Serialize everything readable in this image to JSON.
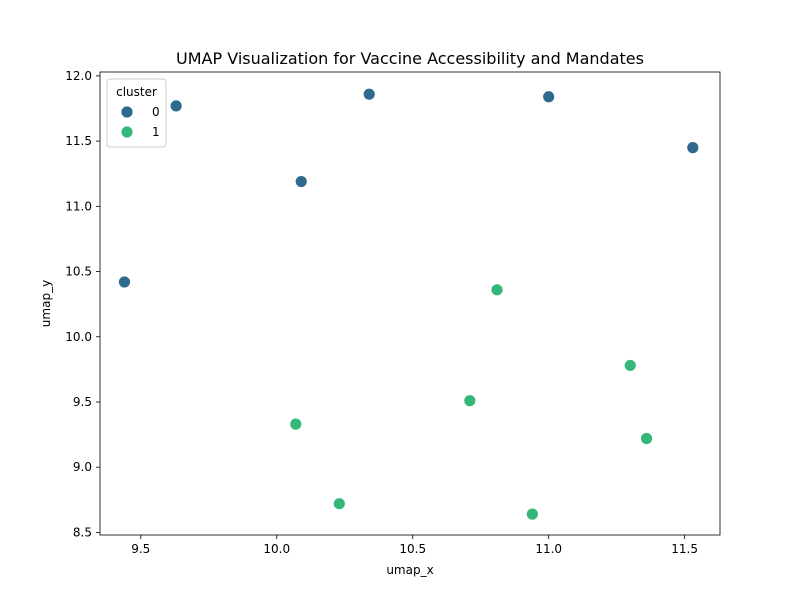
{
  "chart_data": {
    "type": "scatter",
    "title": "UMAP Visualization for Vaccine Accessibility and Mandates",
    "xlabel": "umap_x",
    "ylabel": "umap_y",
    "xlim": [
      9.35,
      11.63
    ],
    "ylim": [
      8.48,
      12.03
    ],
    "x_ticks": [
      9.5,
      10.0,
      10.5,
      11.0,
      11.5
    ],
    "x_tick_labels": [
      "9.5",
      "10.0",
      "10.5",
      "11.0",
      "11.5"
    ],
    "y_ticks": [
      8.5,
      9.0,
      9.5,
      10.0,
      10.5,
      11.0,
      11.5,
      12.0
    ],
    "y_tick_labels": [
      "8.5",
      "9.0",
      "9.5",
      "10.0",
      "10.5",
      "11.0",
      "11.5",
      "12.0"
    ],
    "grid": false,
    "legend": {
      "title": "cluster",
      "placement": "top-left",
      "entries": [
        "0",
        "1"
      ]
    },
    "series": [
      {
        "name": "0",
        "color": "#2e6a8e",
        "points": [
          {
            "x": 9.63,
            "y": 11.77
          },
          {
            "x": 10.34,
            "y": 11.86
          },
          {
            "x": 11.0,
            "y": 11.84
          },
          {
            "x": 11.53,
            "y": 11.45
          },
          {
            "x": 10.09,
            "y": 11.19
          },
          {
            "x": 9.44,
            "y": 10.42
          }
        ]
      },
      {
        "name": "1",
        "color": "#35b779",
        "points": [
          {
            "x": 10.81,
            "y": 10.36
          },
          {
            "x": 11.3,
            "y": 9.78
          },
          {
            "x": 10.71,
            "y": 9.51
          },
          {
            "x": 10.07,
            "y": 9.33
          },
          {
            "x": 11.36,
            "y": 9.22
          },
          {
            "x": 10.23,
            "y": 8.72
          },
          {
            "x": 10.94,
            "y": 8.64
          }
        ]
      }
    ]
  }
}
